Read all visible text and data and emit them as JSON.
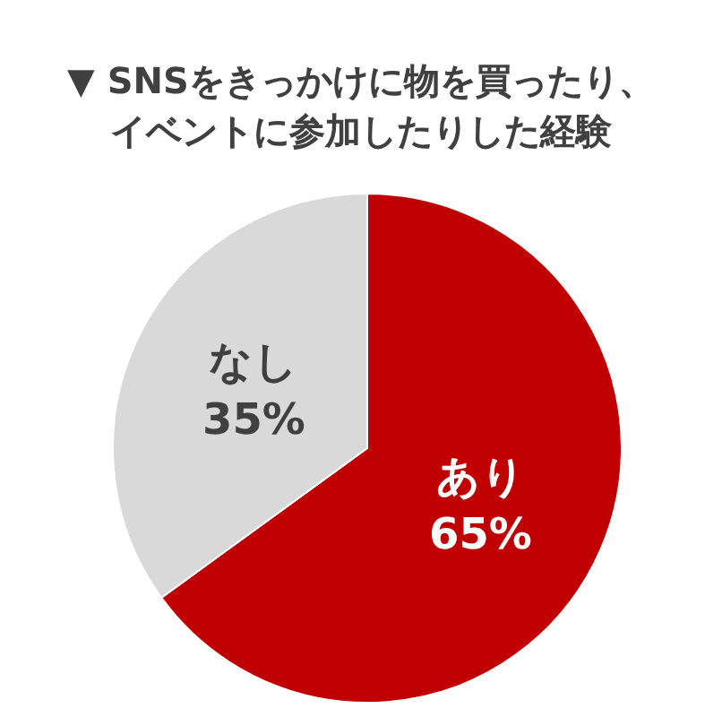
{
  "chart_data": {
    "type": "pie",
    "title": "▼ SNSをきっかけに物を買ったり、イベントに参加したりした経験",
    "categories": [
      "あり",
      "なし"
    ],
    "values": [
      65,
      35
    ],
    "colors": [
      "#c00000",
      "#d9d9d9"
    ],
    "value_labels": [
      "65%",
      "35%"
    ]
  }
}
